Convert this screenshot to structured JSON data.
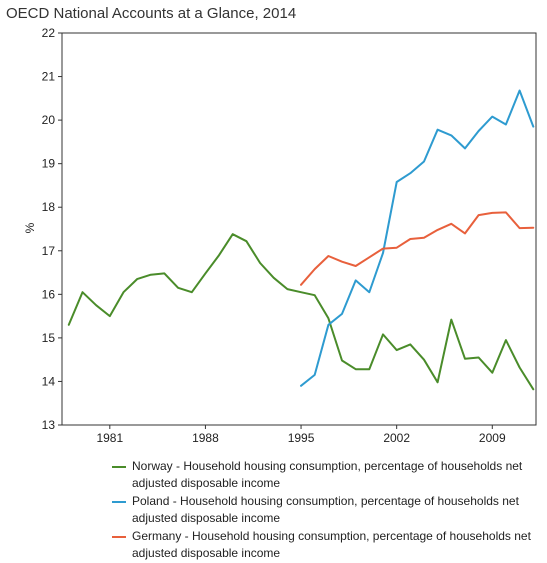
{
  "chart_data": {
    "type": "line",
    "title": "OECD National Accounts at a Glance, 2014",
    "ylabel": "%",
    "xlabel": "",
    "xlim": [
      1977.5,
      2012.2
    ],
    "ylim": [
      13,
      22
    ],
    "yticks": [
      13,
      14,
      15,
      16,
      17,
      18,
      19,
      20,
      21,
      22
    ],
    "xticks": [
      1981,
      1988,
      1995,
      2002,
      2009
    ],
    "grid": false,
    "legend_position": "bottom",
    "series": [
      {
        "name": "Norway - Household housing consumption, percentage of households net adjusted disposable income",
        "color": "#4a8c2a",
        "x": [
          1978,
          1979,
          1980,
          1981,
          1982,
          1983,
          1984,
          1985,
          1986,
          1987,
          1988,
          1989,
          1990,
          1991,
          1992,
          1993,
          1994,
          1995,
          1996,
          1997,
          1998,
          1999,
          2000,
          2001,
          2002,
          2003,
          2004,
          2005,
          2006,
          2007,
          2008,
          2009,
          2010,
          2011,
          2012
        ],
        "y": [
          15.3,
          16.05,
          15.75,
          15.5,
          16.05,
          16.35,
          16.45,
          16.48,
          16.15,
          16.05,
          16.48,
          16.9,
          17.38,
          17.22,
          16.72,
          16.38,
          16.12,
          16.05,
          15.98,
          15.45,
          14.48,
          14.28,
          14.28,
          15.08,
          14.72,
          14.85,
          14.5,
          13.98,
          15.42,
          14.52,
          14.55,
          14.2,
          14.95,
          14.32,
          13.82
        ]
      },
      {
        "name": "Poland - Household housing consumption, percentage of households net adjusted disposable income",
        "color": "#2e9bd0",
        "x": [
          1995,
          1996,
          1997,
          1998,
          1999,
          2000,
          2001,
          2002,
          2003,
          2004,
          2005,
          2006,
          2007,
          2008,
          2009,
          2010,
          2011,
          2012
        ],
        "y": [
          13.9,
          14.15,
          15.3,
          15.55,
          16.32,
          16.05,
          16.95,
          18.58,
          18.78,
          19.05,
          19.78,
          19.65,
          19.35,
          19.75,
          20.08,
          19.9,
          20.68,
          19.85
        ]
      },
      {
        "name": "Germany - Household housing consumption, percentage of households net adjusted disposable income",
        "color": "#e8603c",
        "x": [
          1995,
          1996,
          1997,
          1998,
          1999,
          2000,
          2001,
          2002,
          2003,
          2004,
          2005,
          2006,
          2007,
          2008,
          2009,
          2010,
          2011,
          2012
        ],
        "y": [
          16.22,
          16.58,
          16.88,
          16.75,
          16.65,
          16.85,
          17.05,
          17.07,
          17.27,
          17.3,
          17.48,
          17.62,
          17.4,
          17.82,
          17.87,
          17.88,
          17.52,
          17.53
        ]
      }
    ]
  }
}
